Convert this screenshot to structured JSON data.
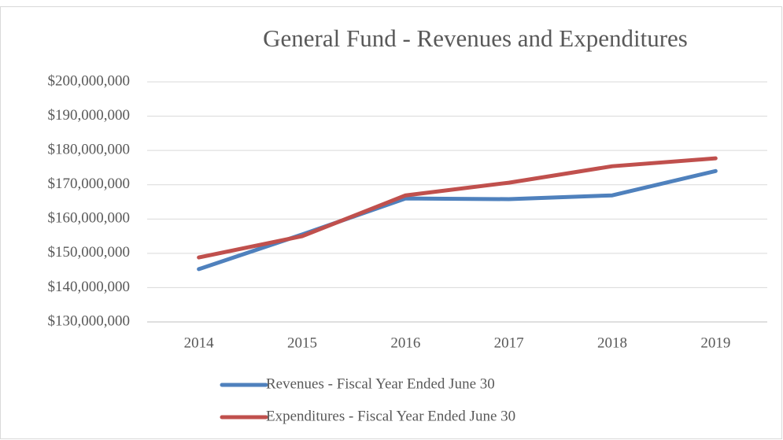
{
  "chart_data": {
    "type": "line",
    "title": "General Fund - Revenues and Expenditures",
    "categories": [
      "2014",
      "2015",
      "2016",
      "2017",
      "2018",
      "2019"
    ],
    "series": [
      {
        "name": "Revenues - Fiscal Year Ended June 30",
        "color": "#4f81bd",
        "values": [
          145400000,
          155500000,
          166000000,
          165800000,
          166900000,
          174000000
        ]
      },
      {
        "name": "Expenditures - Fiscal Year Ended June 30",
        "color": "#c0504d",
        "values": [
          148800000,
          155000000,
          166900000,
          170600000,
          175400000,
          177700000
        ]
      }
    ],
    "ylim": [
      130000000,
      200000000
    ],
    "yticks": [
      {
        "value": 130000000,
        "label": "$130,000,000"
      },
      {
        "value": 140000000,
        "label": "$140,000,000"
      },
      {
        "value": 150000000,
        "label": "$150,000,000"
      },
      {
        "value": 160000000,
        "label": "$160,000,000"
      },
      {
        "value": 170000000,
        "label": "$170,000,000"
      },
      {
        "value": 180000000,
        "label": "$180,000,000"
      },
      {
        "value": 190000000,
        "label": "$190,000,000"
      },
      {
        "value": 200000000,
        "label": "$200,000,000"
      }
    ],
    "grid": true,
    "legend": "bottom"
  }
}
